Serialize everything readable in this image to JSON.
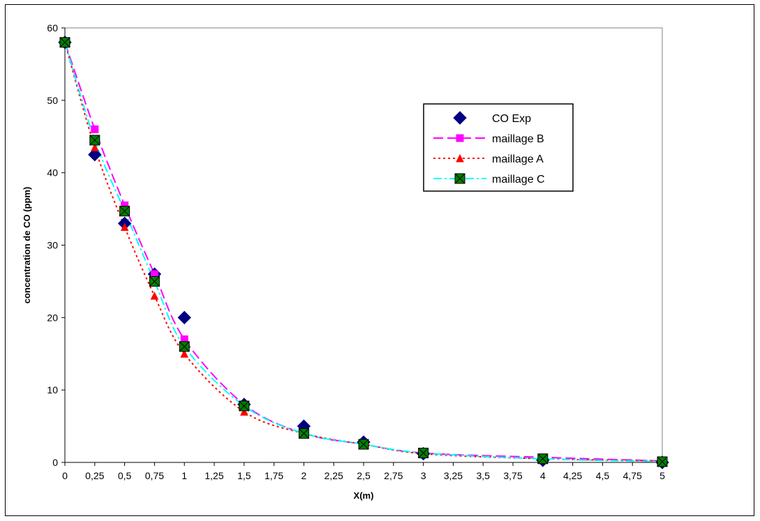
{
  "chart_data": {
    "type": "line",
    "title": "",
    "xlabel": "X(m)",
    "ylabel": "concentration de CO (ppm)",
    "xlim": [
      0,
      5
    ],
    "ylim": [
      0,
      60
    ],
    "xticks": [
      0,
      0.25,
      0.5,
      0.75,
      1,
      1.25,
      1.5,
      1.75,
      2,
      2.25,
      2.5,
      2.75,
      3,
      3.25,
      3.5,
      3.75,
      4,
      4.25,
      4.5,
      4.75,
      5
    ],
    "xtick_labels": [
      "0",
      "0,25",
      "0,5",
      "0,75",
      "1",
      "1,25",
      "1,5",
      "1,75",
      "2",
      "2,25",
      "2,5",
      "2,75",
      "3",
      "3,25",
      "3,5",
      "3,75",
      "4",
      "4,25",
      "4,5",
      "4,75",
      "5"
    ],
    "yticks": [
      0,
      10,
      20,
      30,
      40,
      50,
      60
    ],
    "ytick_labels": [
      "0",
      "10",
      "20",
      "30",
      "40",
      "50",
      "60"
    ],
    "grid": true,
    "legend_position": "top-right",
    "series": [
      {
        "name": "CO  Exp",
        "marker": "diamond",
        "line": "none",
        "color": "#000080",
        "x": [
          0,
          0.25,
          0.5,
          0.75,
          1,
          1.5,
          2,
          2.5,
          3,
          4,
          5
        ],
        "y": [
          58,
          42.5,
          33,
          26,
          20,
          8,
          5,
          2.8,
          1.2,
          0.3,
          0
        ]
      },
      {
        "name": "maillage B",
        "marker": "square",
        "line": "longdash",
        "color": "#FF00FF",
        "x": [
          0,
          0.25,
          0.5,
          0.75,
          1,
          1.5,
          2,
          2.5,
          3,
          4,
          5
        ],
        "y": [
          58,
          46,
          35.5,
          26,
          17,
          8,
          4,
          2.5,
          1.3,
          0.7,
          0.2
        ]
      },
      {
        "name": "maillage A",
        "marker": "triangle",
        "line": "dotted",
        "color": "#FF0000",
        "x": [
          0,
          0.25,
          0.5,
          0.75,
          1,
          1.5,
          2,
          2.5,
          3,
          4,
          5
        ],
        "y": [
          58,
          43.5,
          32.5,
          23,
          15,
          7,
          4,
          2.5,
          1.2,
          0.5,
          0.2
        ]
      },
      {
        "name": "maillage C",
        "marker": "square-x",
        "line": "dashdot",
        "color": "#00FFFF",
        "marker_fill": "#008000",
        "x": [
          0,
          0.25,
          0.5,
          0.75,
          1,
          1.5,
          2,
          2.5,
          3,
          4,
          5
        ],
        "y": [
          58,
          44.5,
          34.7,
          25,
          16,
          7.8,
          4,
          2.5,
          1.3,
          0.5,
          0.1
        ]
      }
    ]
  }
}
